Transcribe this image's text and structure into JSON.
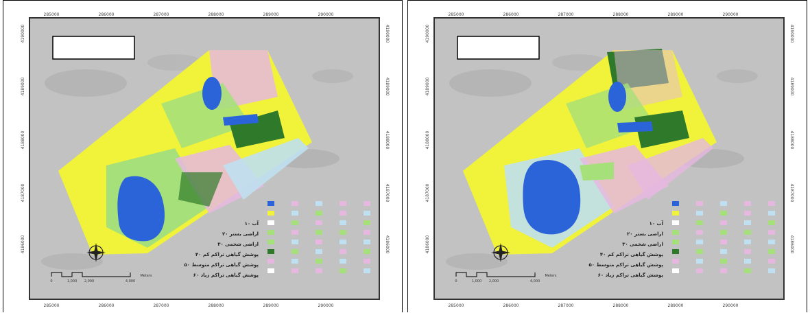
{
  "maps": [
    {
      "id": "left",
      "x_ticks": [
        "285000",
        "286000",
        "287000",
        "288000",
        "289000",
        "290000"
      ],
      "y_ticks": [
        "4190000",
        "4189000",
        "4188000",
        "4187000",
        "4186000"
      ],
      "legend_classes": [
        "آب ۱۰",
        "اراضی بستر ۲۰",
        "اراضی شخمی ۳۰",
        "پوشش گیاهی تراکم کم ۴۰",
        "پوشش گیاهی تراکم متوسط ۵۰",
        "پوشش گیاهی تراکم زیاد ۶۰"
      ],
      "scale_label": "Meters",
      "scale_ticks": [
        "0",
        "1,000",
        "2,000",
        "4,000"
      ]
    },
    {
      "id": "right",
      "x_ticks": [
        "285000",
        "286000",
        "287000",
        "288000",
        "289000",
        "290000"
      ],
      "y_ticks": [
        "4190000",
        "4189000",
        "4188000",
        "4187000",
        "4186000"
      ],
      "legend_classes": [
        "آب ۱۰",
        "اراضی بستر ۲۰",
        "اراضی شخمی ۳۰",
        "پوشش گیاهی تراکم کم ۴۰",
        "پوشش گیاهی تراکم متوسط ۵۰",
        "پوشش گیاهی تراکم زیاد ۶۰"
      ],
      "scale_label": "Meters",
      "scale_ticks": [
        "0",
        "1,000",
        "2,000",
        "4,000"
      ]
    }
  ],
  "colors": {
    "water": "#2b63d9",
    "yellow": "#f1f23a",
    "lightgreen": "#a6e07a",
    "darkgreen": "#2f7a2a",
    "pink": "#e6b8e0",
    "lightblue": "#bfe0f0",
    "hillshade": "#bdbdbd"
  }
}
